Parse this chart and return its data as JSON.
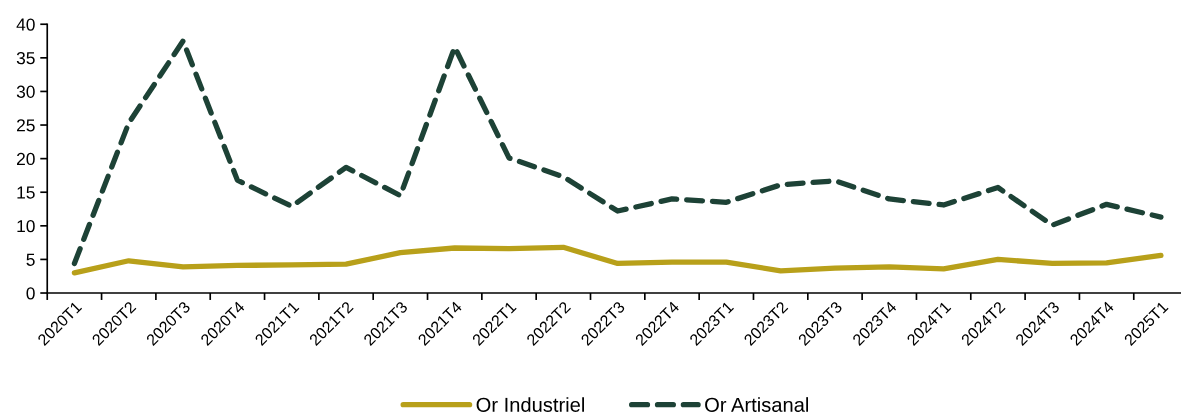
{
  "chart_data": {
    "type": "line",
    "categories": [
      "2020T1",
      "2020T2",
      "2020T3",
      "2020T4",
      "2021T1",
      "2021T2",
      "2021T3",
      "2021T4",
      "2022T1",
      "2022T2",
      "2022T3",
      "2022T4",
      "2023T1",
      "2023T2",
      "2023T3",
      "2023T4",
      "2024T1",
      "2024T2",
      "2024T3",
      "2024T4",
      "2025T1"
    ],
    "series": [
      {
        "name": "Or Industriel",
        "color": "#b8a01a",
        "line_style": "solid",
        "values": [
          3.0,
          4.8,
          3.9,
          4.1,
          4.2,
          4.3,
          6.0,
          6.7,
          6.6,
          6.8,
          4.4,
          4.6,
          4.6,
          3.3,
          3.7,
          3.9,
          3.6,
          5.0,
          4.4,
          4.5,
          5.6
        ]
      },
      {
        "name": "Or Artisanal",
        "color": "#1d4236",
        "line_style": "dashed",
        "values": [
          4.4,
          25.3,
          37.5,
          16.8,
          12.9,
          18.7,
          14.5,
          36.6,
          20.1,
          17.3,
          12.2,
          14.0,
          13.5,
          16.1,
          16.7,
          14.0,
          13.1,
          15.7,
          10.1,
          13.2,
          11.3
        ]
      }
    ],
    "ylim": [
      0,
      40
    ],
    "yticks": [
      0,
      5,
      10,
      15,
      20,
      25,
      30,
      35,
      40
    ],
    "grid": false,
    "legend": "bottom"
  }
}
